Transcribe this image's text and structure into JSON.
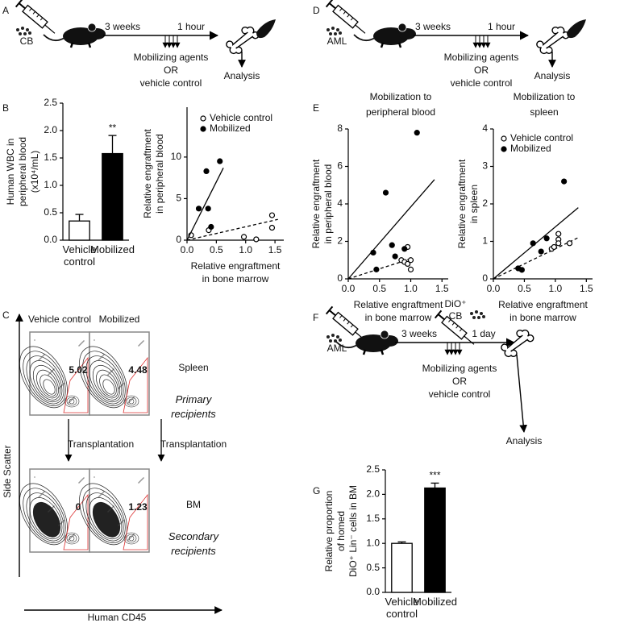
{
  "schematics": [
    {
      "panel": "A",
      "cells": "CB",
      "interval1": "3 weeks",
      "interval2": "1 hour",
      "treatment": [
        "Mobilizing agents",
        "OR",
        "vehicle control"
      ],
      "readout": "Analysis"
    },
    {
      "panel": "D",
      "cells": "AML",
      "interval1": "3 weeks",
      "interval2": "1 hour",
      "treatment": [
        "Mobilizing agents",
        "OR",
        "vehicle control"
      ],
      "readout": "Analysis"
    },
    {
      "panel": "F",
      "cells": "AML",
      "second_injection": [
        "DiO⁺",
        "CB"
      ],
      "interval1": "3 weeks",
      "interval2": "1 day",
      "treatment": [
        "Mobilizing agents",
        "OR",
        "vehicle control"
      ],
      "readout": "Analysis"
    }
  ],
  "flow": {
    "panel": "C",
    "columns": [
      "Vehicle control",
      "Mobilized"
    ],
    "rows": [
      {
        "tissue": "Spleen",
        "recipients": "Primary recipients",
        "gates": [
          5.02,
          4.48
        ]
      },
      {
        "tissue": "BM",
        "recipients": "Secondary recipients",
        "gates": [
          0,
          1.23
        ]
      }
    ],
    "transition": [
      "Transplantation",
      "Transplantation"
    ],
    "ylabel": "Side Scatter",
    "xlabel": "Human CD45"
  },
  "chart_data": [
    {
      "type": "bar",
      "panel": "B",
      "ylabel": [
        "Human WBC in",
        "peripheral blood",
        "(x10⁴/mL)"
      ],
      "categories": [
        "Vehicle control",
        "Mobilized"
      ],
      "values": [
        0.35,
        1.58
      ],
      "errors": [
        0.12,
        0.33
      ],
      "colors": [
        "#ffffff",
        "#000000"
      ],
      "significance": "**",
      "ylim": [
        0,
        2.5
      ],
      "yticks": [
        {
          "value": 0,
          "label": "0.0"
        },
        0.5,
        {
          "value": 1,
          "label": "1.0"
        },
        1.5,
        {
          "value": 2,
          "label": "2.0"
        },
        2.5
      ]
    },
    {
      "type": "scatter",
      "ylabel": [
        "Relative engraftment",
        "in peripheral blood"
      ],
      "xlabel": [
        "Relative engraftment",
        "in bone marrow"
      ],
      "xlim": [
        0,
        1.65
      ],
      "xticks": [
        {
          "value": 0,
          "label": "0.0"
        },
        0.5,
        {
          "value": 1,
          "label": "1.0"
        },
        1.5
      ],
      "ylim": [
        0,
        16
      ],
      "yticks": [
        0,
        5,
        10
      ],
      "legend": "upper left",
      "series": [
        {
          "name": "Vehicle control",
          "marker": "open",
          "color": "#000000",
          "x": [
            0.07,
            0.37,
            0.97,
            1.18,
            1.45,
            1.45
          ],
          "y": [
            0.6,
            1.2,
            0.4,
            0.1,
            1.5,
            3.0
          ],
          "fit": {
            "x": [
              0,
              1.55
            ],
            "y": [
              0,
              2.5
            ]
          }
        },
        {
          "name": "Mobilized",
          "marker": "filled",
          "color": "#000000",
          "x": [
            0.2,
            0.33,
            0.36,
            0.56,
            0.41
          ],
          "y": [
            3.8,
            8.3,
            3.8,
            9.5,
            1.6
          ],
          "fit": {
            "x": [
              0,
              0.62
            ],
            "y": [
              0,
              8.7
            ]
          }
        }
      ]
    },
    {
      "type": "scatter",
      "panel": "E",
      "title": [
        "Mobilization to",
        "peripheral blood"
      ],
      "ylabel": [
        "Relative engraftment",
        "in peripheral blood"
      ],
      "xlabel": [
        "Relative engraftment",
        "in bone marrow"
      ],
      "xlim": [
        0,
        1.6
      ],
      "xticks": [
        {
          "value": 0,
          "label": "0.0"
        },
        0.5,
        {
          "value": 1,
          "label": "1.0"
        },
        1.5
      ],
      "ylim": [
        0,
        8
      ],
      "yticks": [
        0,
        2,
        4,
        6,
        8
      ],
      "series": [
        {
          "name": "Vehicle control",
          "marker": "open",
          "color": "#000000",
          "x": [
            0.85,
            0.9,
            0.95,
            0.95,
            1.0,
            1.0
          ],
          "y": [
            1.0,
            0.9,
            1.7,
            0.8,
            0.5,
            1.0
          ],
          "fit": {
            "x": [
              0,
              0.96
            ],
            "y": [
              0,
              1.03
            ]
          }
        },
        {
          "name": "Mobilized",
          "marker": "filled",
          "color": "#000000",
          "x": [
            0.4,
            0.45,
            0.6,
            0.7,
            0.75,
            0.9,
            1.1
          ],
          "y": [
            1.4,
            0.5,
            4.6,
            1.8,
            1.2,
            1.6,
            7.8
          ],
          "fit": {
            "x": [
              0,
              1.38
            ],
            "y": [
              0,
              5.3
            ]
          }
        }
      ]
    },
    {
      "type": "scatter",
      "title": [
        "Mobilization to",
        "spleen"
      ],
      "ylabel": [
        "Relative engraftment",
        "in spleen"
      ],
      "xlabel": [
        "Relative engraftment",
        "in bone marrow"
      ],
      "xlim": [
        0,
        1.6
      ],
      "xticks": [
        {
          "value": 0,
          "label": "0.0"
        },
        0.5,
        {
          "value": 1,
          "label": "1.0"
        },
        1.5
      ],
      "ylim": [
        0,
        4
      ],
      "yticks": [
        0,
        1,
        2,
        3,
        4
      ],
      "legend": "upper left",
      "series": [
        {
          "name": "Vehicle control",
          "marker": "open",
          "color": "#000000",
          "x": [
            0.94,
            1.05,
            1.05,
            1.05,
            1.23,
            0.98
          ],
          "y": [
            0.8,
            1.2,
            1.05,
            0.95,
            0.95,
            0.85
          ],
          "fit": {
            "x": [
              0,
              1.37
            ],
            "y": [
              0,
              1.1
            ]
          }
        },
        {
          "name": "Mobilized",
          "marker": "filled",
          "color": "#000000",
          "x": [
            0.4,
            0.46,
            0.64,
            0.77,
            0.86,
            1.14
          ],
          "y": [
            0.28,
            0.24,
            0.95,
            0.73,
            1.08,
            2.6
          ],
          "fit": {
            "x": [
              0,
              1.37
            ],
            "y": [
              0,
              1.9
            ]
          }
        }
      ]
    },
    {
      "type": "bar",
      "panel": "G",
      "ylabel": [
        "Relative proportion",
        "of homed",
        "DiO⁺ Lin⁻ cells in BM"
      ],
      "categories": [
        "Vehicle control",
        "Mobilized"
      ],
      "values": [
        1.0,
        2.13
      ],
      "errors": [
        0.03,
        0.1
      ],
      "colors": [
        "#ffffff",
        "#000000"
      ],
      "significance": "***",
      "ylim": [
        0,
        2.5
      ],
      "yticks": [
        {
          "value": 0,
          "label": "0.0"
        },
        0.5,
        {
          "value": 1,
          "label": "1.0"
        },
        1.5,
        {
          "value": 2,
          "label": "2.0"
        },
        2.5
      ]
    }
  ]
}
